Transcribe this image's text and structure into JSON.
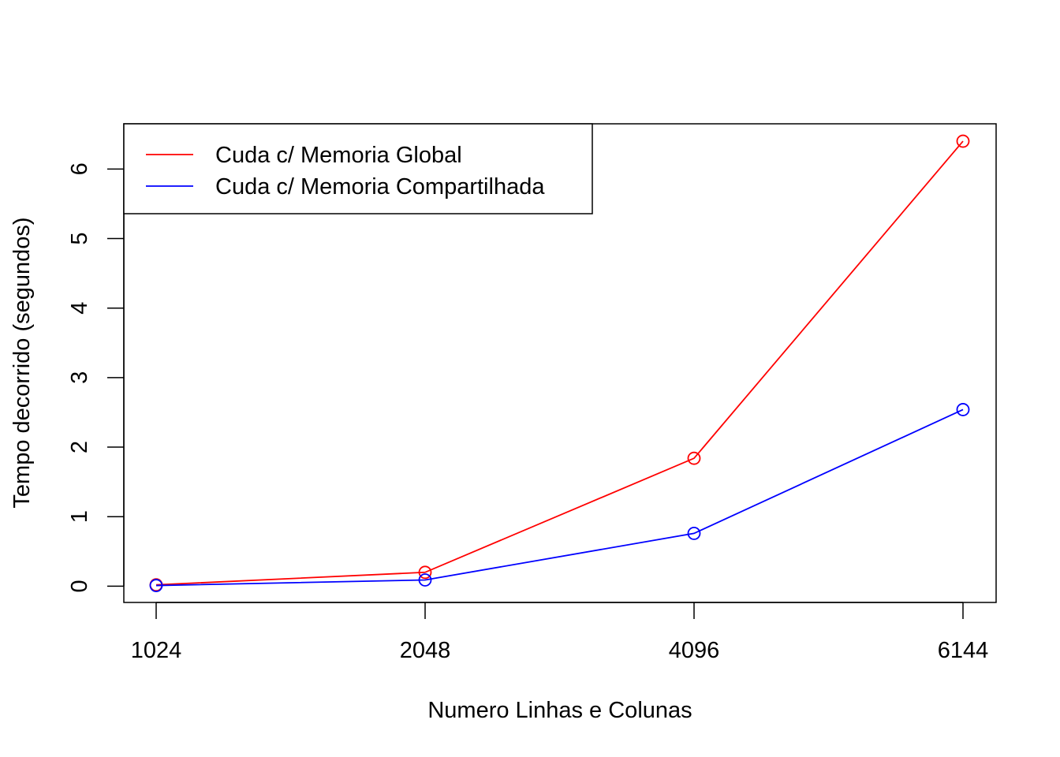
{
  "chart_data": {
    "type": "line",
    "title": "",
    "xlabel": "Numero Linhas e Colunas",
    "ylabel": "Tempo decorrido (segundos)",
    "x": [
      "1024",
      "2048",
      "4096",
      "6144"
    ],
    "ylim": [
      -0.2333,
      6.65
    ],
    "yticks": [
      "0",
      "1",
      "2",
      "3",
      "4",
      "5",
      "6"
    ],
    "grid": false,
    "legend_position": "top-left",
    "series": [
      {
        "name": "Cuda c/ Memoria Global",
        "color": "#ff0000",
        "values": [
          0.02,
          0.2,
          1.84,
          6.4
        ]
      },
      {
        "name": "Cuda c/ Memoria Compartilhada",
        "color": "#0000ff",
        "values": [
          0.01,
          0.09,
          0.76,
          2.54
        ]
      }
    ]
  }
}
